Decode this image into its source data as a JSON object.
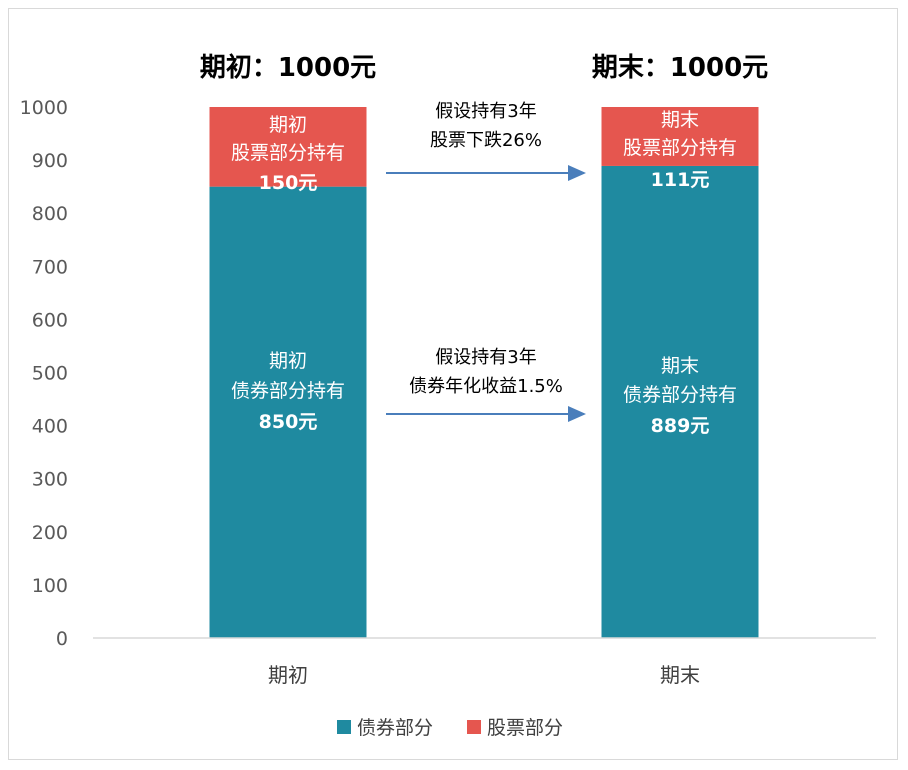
{
  "chart_data": {
    "type": "bar",
    "stacked": true,
    "categories": [
      "期初",
      "期末"
    ],
    "series": [
      {
        "name": "债券部分",
        "values": [
          850,
          889
        ],
        "color": "#1f8aa0"
      },
      {
        "name": "股票部分",
        "values": [
          150,
          111
        ],
        "color": "#e5564f"
      }
    ],
    "ylim": [
      0,
      1000
    ],
    "yticks": [
      0,
      100,
      200,
      300,
      400,
      500,
      600,
      700,
      800,
      900,
      1000
    ],
    "legend_position": "bottom",
    "grid": false
  },
  "titles": [
    "期初：1000元",
    "期末：1000元"
  ],
  "segment_labels": {
    "bond_start": [
      "期初",
      "债券部分持有",
      "850元"
    ],
    "stock_start": [
      "期初",
      "股票部分持有",
      "150元"
    ],
    "bond_end": [
      "期末",
      "债券部分持有",
      "889元"
    ],
    "stock_end": [
      "期末",
      "股票部分持有",
      "111元"
    ]
  },
  "arrow_notes": {
    "stock": [
      "假设持有3年",
      "股票下跌26%"
    ],
    "bond": [
      "假设持有3年",
      "债券年化收益1.5%"
    ]
  },
  "colors": {
    "arrow": "#4a7ebb",
    "axis": "#d9d9d9"
  }
}
